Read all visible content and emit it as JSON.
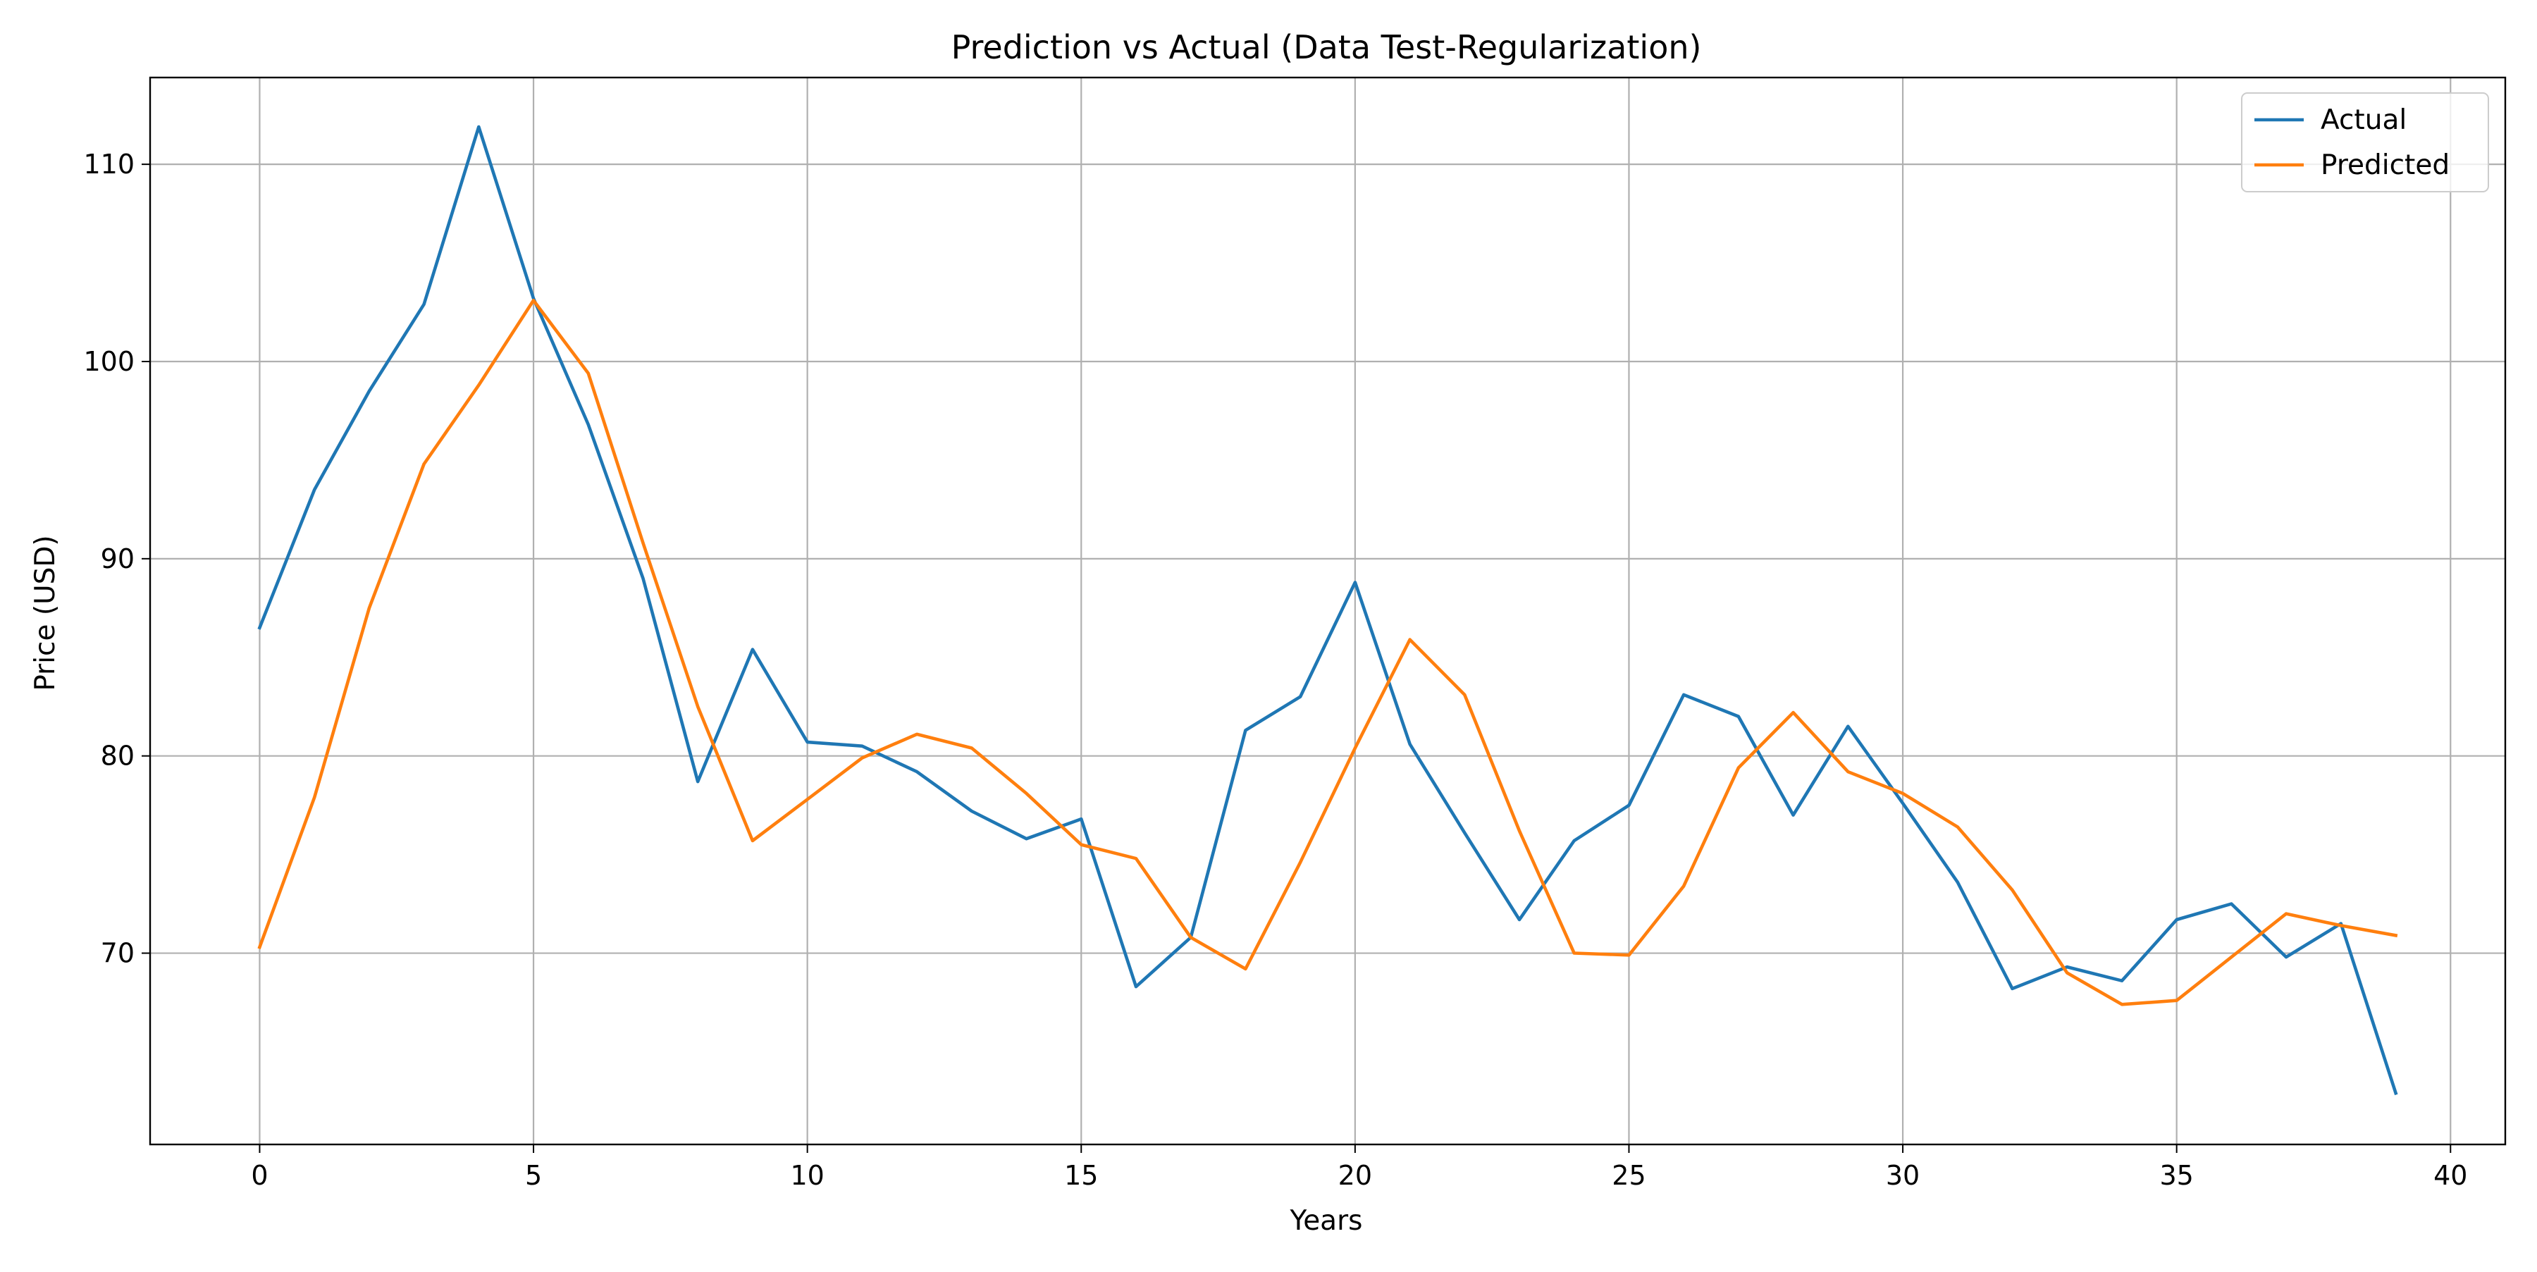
{
  "chart_data": {
    "type": "line",
    "title": "Prediction vs Actual (Data Test-Regularization)",
    "xlabel": "Years",
    "ylabel": "Price (USD)",
    "xlim": [
      -2,
      41
    ],
    "ylim": [
      60.3,
      114.4
    ],
    "xticks": [
      0,
      5,
      10,
      15,
      20,
      25,
      30,
      35,
      40
    ],
    "yticks": [
      70,
      80,
      90,
      100,
      110
    ],
    "grid": true,
    "legend": "top-right",
    "x": [
      0,
      1,
      2,
      3,
      4,
      5,
      6,
      7,
      8,
      9,
      10,
      11,
      12,
      13,
      14,
      15,
      16,
      17,
      18,
      19,
      20,
      21,
      22,
      23,
      24,
      25,
      26,
      27,
      28,
      29,
      30,
      31,
      32,
      33,
      34,
      35,
      36,
      37,
      38,
      39
    ],
    "series": [
      {
        "name": "Actual",
        "color": "#1f77b4",
        "values": [
          86.5,
          93.5,
          98.5,
          102.9,
          111.9,
          103.2,
          96.8,
          89.0,
          78.7,
          85.4,
          80.7,
          80.5,
          79.2,
          77.2,
          75.8,
          76.8,
          68.3,
          70.8,
          81.3,
          83.0,
          88.8,
          80.6,
          76.1,
          71.7,
          75.7,
          77.5,
          83.1,
          82.0,
          77.0,
          81.5,
          77.6,
          73.6,
          68.2,
          69.3,
          68.6,
          71.7,
          72.5,
          69.8,
          71.5,
          62.9
        ]
      },
      {
        "name": "Predicted",
        "color": "#ff7f0e",
        "values": [
          70.3,
          77.9,
          87.5,
          94.8,
          98.8,
          103.1,
          99.4,
          90.8,
          82.5,
          75.7,
          77.8,
          79.9,
          81.1,
          80.4,
          78.1,
          75.5,
          74.8,
          70.8,
          69.2,
          74.6,
          80.4,
          85.9,
          83.1,
          76.2,
          70.0,
          69.9,
          73.4,
          79.4,
          82.2,
          79.2,
          78.1,
          76.4,
          73.2,
          69.0,
          67.4,
          67.6,
          69.8,
          72.0,
          71.4,
          70.9
        ]
      }
    ]
  }
}
